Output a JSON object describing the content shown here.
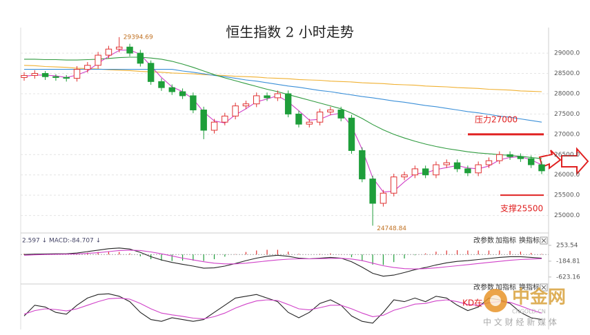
{
  "chart_data": [
    {
      "type": "candlestick",
      "title": "恒生指数 2 小时走势",
      "open": [
        28400,
        28450,
        28500,
        28420,
        28400,
        28380,
        28600,
        28700,
        28950,
        29100,
        29150,
        29000,
        28750,
        28300,
        28150,
        28050,
        27950,
        27600,
        27100,
        27300,
        27450,
        27700,
        27750,
        27950,
        27900,
        28000,
        27500,
        27250,
        27300,
        27550,
        27600,
        27400,
        26600,
        25900,
        25300,
        25550,
        25950,
        26000,
        26150,
        26000,
        26250,
        26300,
        26150,
        26050,
        26250,
        26350,
        26500,
        26450,
        26400,
        26250
      ],
      "high": [
        28530,
        28580,
        28560,
        28480,
        28460,
        28680,
        28780,
        29030,
        29180,
        29394.69,
        29230,
        29080,
        28820,
        28380,
        28230,
        28130,
        28030,
        27680,
        27380,
        27530,
        27780,
        27830,
        28030,
        28030,
        28080,
        28080,
        27580,
        27380,
        27630,
        27680,
        27680,
        27480,
        26680,
        25980,
        25630,
        26030,
        26080,
        26230,
        26230,
        26330,
        26380,
        26380,
        26230,
        26330,
        26430,
        26580,
        26580,
        26530,
        26480,
        26330
      ],
      "low": [
        28320,
        28370,
        28340,
        28320,
        28300,
        28300,
        28520,
        28620,
        28870,
        29020,
        28920,
        28670,
        28220,
        28070,
        27970,
        27870,
        27520,
        26880,
        27020,
        27220,
        27370,
        27620,
        27670,
        27820,
        27820,
        27420,
        27170,
        27170,
        27220,
        27470,
        27320,
        26520,
        25820,
        24748.84,
        25220,
        25470,
        25870,
        25920,
        25920,
        25920,
        26170,
        26070,
        25970,
        25970,
        26170,
        26270,
        26370,
        26320,
        26170,
        26020
      ],
      "close": [
        28450,
        28500,
        28420,
        28400,
        28380,
        28600,
        28700,
        28950,
        29100,
        29150,
        29000,
        28750,
        28300,
        28150,
        28050,
        27950,
        27600,
        27100,
        27300,
        27450,
        27700,
        27750,
        27950,
        27900,
        28000,
        27500,
        27250,
        27300,
        27550,
        27600,
        27400,
        26600,
        25900,
        25300,
        25550,
        25950,
        26000,
        26150,
        26000,
        26250,
        26300,
        26150,
        26050,
        26250,
        26350,
        26500,
        26450,
        26400,
        26250,
        26100
      ],
      "up_color": "#e03030",
      "down_color": "#1e9e3a",
      "lines": [
        {
          "color": "#f0b030",
          "values": [
            28700,
            28690,
            28670,
            28660,
            28650,
            28630,
            28620,
            28610,
            28590,
            28580,
            28570,
            28550,
            28540,
            28530,
            28510,
            28500,
            28490,
            28470,
            28460,
            28450,
            28430,
            28420,
            28410,
            28390,
            28380,
            28370,
            28350,
            28340,
            28330,
            28310,
            28300,
            28290,
            28270,
            28260,
            28250,
            28230,
            28220,
            28210,
            28190,
            28180,
            28170,
            28150,
            28140,
            28130,
            28110,
            28100,
            28090,
            28070,
            28060,
            28050
          ]
        },
        {
          "color": "#3a8fd8",
          "values": [
            28600,
            28600,
            28600,
            28600,
            28600,
            28600,
            28600,
            28600,
            28600,
            28600,
            28600,
            28600,
            28600,
            28600,
            28600,
            28560,
            28530,
            28490,
            28450,
            28420,
            28380,
            28340,
            28310,
            28270,
            28230,
            28190,
            28160,
            28120,
            28080,
            28050,
            28010,
            27970,
            27930,
            27900,
            27860,
            27820,
            27790,
            27750,
            27710,
            27680,
            27640,
            27600,
            27560,
            27530,
            27490,
            27450,
            27420,
            27380,
            27340,
            27300
          ]
        },
        {
          "color": "#2e9a3e",
          "values": [
            28850,
            28850,
            28840,
            28840,
            28830,
            28830,
            28840,
            28850,
            28870,
            28890,
            28900,
            28900,
            28880,
            28850,
            28800,
            28730,
            28650,
            28560,
            28470,
            28390,
            28320,
            28250,
            28180,
            28110,
            28050,
            27980,
            27910,
            27840,
            27770,
            27700,
            27630,
            27520,
            27390,
            27240,
            27110,
            27000,
            26910,
            26830,
            26760,
            26700,
            26650,
            26610,
            26570,
            26540,
            26520,
            26500,
            26480,
            26460,
            26430,
            26400
          ]
        },
        {
          "color": "#d040c8",
          "values": [
            28430,
            28460,
            28460,
            28440,
            28400,
            28460,
            28560,
            28750,
            28920,
            29070,
            29080,
            28970,
            28680,
            28400,
            28170,
            28050,
            27870,
            27550,
            27330,
            27280,
            27480,
            27630,
            27800,
            27870,
            27950,
            27800,
            27580,
            27350,
            27370,
            27480,
            27520,
            27200,
            26630,
            25930,
            25580,
            25600,
            25830,
            26030,
            26050,
            26130,
            26180,
            26230,
            26170,
            26150,
            26220,
            26370,
            26430,
            26450,
            26370,
            26250
          ]
        }
      ],
      "ylim": [
        24620,
        29630
      ],
      "yticks": [
        {
          "value": 25000,
          "label": "25000.0"
        },
        {
          "value": 25500,
          "label": "25500.0"
        },
        {
          "value": 26000,
          "label": "26000.0"
        },
        {
          "value": 26500,
          "label": "26500.0"
        },
        {
          "value": 27000,
          "label": "27000.0"
        },
        {
          "value": 27500,
          "label": "27500.0"
        },
        {
          "value": 28000,
          "label": "28000.0"
        },
        {
          "value": 28500,
          "label": "28500.0"
        },
        {
          "value": 29000,
          "label": "29000.0"
        }
      ],
      "grid": true,
      "high_label": "29394.69",
      "low_label": "24748.84",
      "resistance": {
        "label": "压力27000",
        "value": 27000
      },
      "support": {
        "label": "支撑25500",
        "value": 25500
      },
      "level_color": "#e02020"
    },
    {
      "type": "macd",
      "header": "2.597 ↓ MACD:-84.707 ↓",
      "buttons": [
        "改参数",
        "加指标",
        "换指标"
      ],
      "ylim": [
        -740,
        500
      ],
      "yticks": [
        253.54,
        -184.81,
        -623.16
      ],
      "histogram": [
        20,
        20,
        15,
        15,
        10,
        25,
        50,
        70,
        80,
        70,
        30,
        -50,
        -130,
        -170,
        -180,
        -170,
        -170,
        -180,
        -130,
        -60,
        10,
        70,
        110,
        130,
        130,
        80,
        20,
        0,
        15,
        30,
        5,
        -75,
        -180,
        -280,
        -290,
        -210,
        -110,
        -20,
        30,
        80,
        110,
        120,
        110,
        110,
        110,
        110,
        100,
        80,
        45,
        15
      ],
      "dif": [
        0,
        10,
        15,
        20,
        20,
        40,
        80,
        120,
        160,
        180,
        150,
        60,
        -60,
        -150,
        -220,
        -270,
        -320,
        -380,
        -370,
        -320,
        -250,
        -170,
        -100,
        -50,
        -20,
        -50,
        -100,
        -120,
        -100,
        -80,
        -100,
        -200,
        -350,
        -520,
        -600,
        -570,
        -500,
        -420,
        -360,
        -290,
        -230,
        -190,
        -170,
        -140,
        -110,
        -80,
        -60,
        -60,
        -80,
        -100
      ],
      "dea": [
        -20,
        -10,
        0,
        5,
        10,
        15,
        30,
        50,
        80,
        110,
        120,
        110,
        70,
        20,
        -40,
        -100,
        -150,
        -200,
        -240,
        -260,
        -260,
        -240,
        -210,
        -180,
        -150,
        -130,
        -120,
        -120,
        -115,
        -110,
        -105,
        -125,
        -170,
        -240,
        -310,
        -360,
        -390,
        -400,
        -390,
        -370,
        -340,
        -310,
        -280,
        -250,
        -220,
        -190,
        -160,
        -140,
        -125,
        -115
      ],
      "dif_color": "#222222",
      "dea_color": "#d040c8",
      "up_color": "#e03030",
      "down_color": "#1e9e3a"
    },
    {
      "type": "kd",
      "label": "KD在",
      "buttons": [
        "改参数",
        "加指标",
        "换指标"
      ],
      "ylim": [
        0,
        100
      ],
      "k": [
        30,
        60,
        55,
        40,
        35,
        60,
        80,
        90,
        92,
        85,
        70,
        40,
        20,
        15,
        25,
        20,
        15,
        20,
        40,
        60,
        80,
        85,
        90,
        80,
        70,
        40,
        25,
        40,
        65,
        75,
        60,
        30,
        15,
        10,
        40,
        75,
        70,
        80,
        70,
        85,
        80,
        60,
        45,
        55,
        80,
        75,
        65,
        40,
        25,
        20
      ],
      "d": [
        35,
        45,
        50,
        48,
        44,
        50,
        60,
        70,
        78,
        80,
        77,
        65,
        50,
        38,
        33,
        29,
        24,
        22,
        28,
        38,
        52,
        63,
        72,
        75,
        73,
        62,
        50,
        47,
        53,
        60,
        60,
        50,
        38,
        28,
        32,
        46,
        54,
        63,
        65,
        72,
        75,
        70,
        62,
        60,
        67,
        70,
        68,
        58,
        47,
        38
      ],
      "k_color": "#222222",
      "d_color": "#d040c8"
    }
  ],
  "watermark": {
    "logo": "中金网",
    "site": "CNGOLD.CN",
    "tagline": "中 文 财 经 新 媒 体"
  }
}
